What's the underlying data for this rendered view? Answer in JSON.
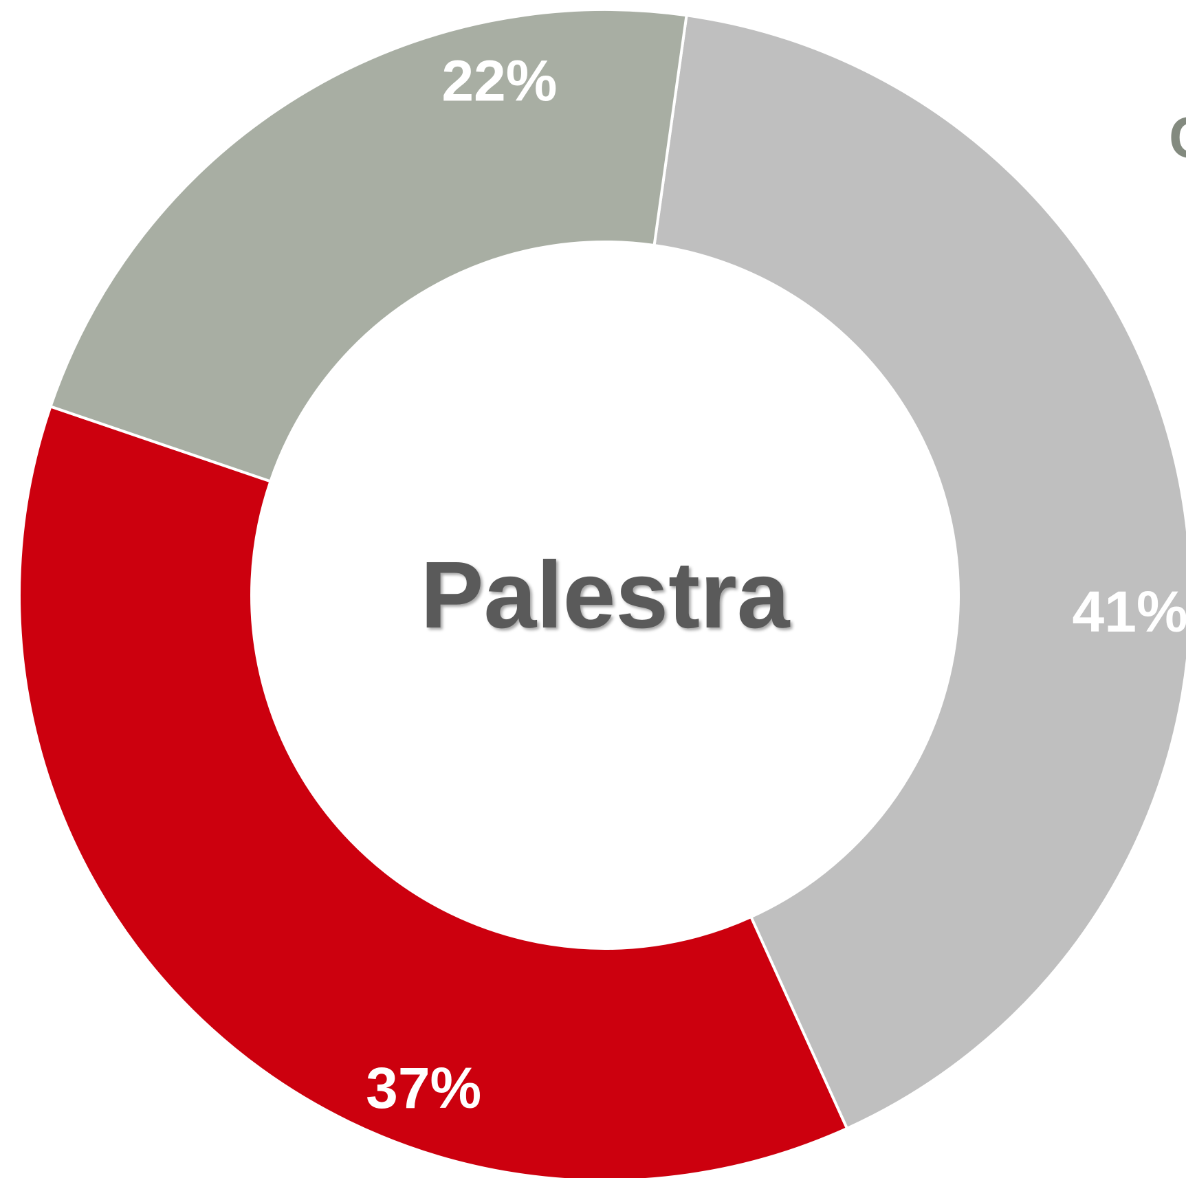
{
  "chart_data": {
    "type": "pie",
    "variant": "donut",
    "center_label": "Palestra",
    "slices": [
      {
        "label": "41%",
        "value": 41,
        "color": "#bfbfbf"
      },
      {
        "label": "37%",
        "value": 37,
        "color": "#cc000e"
      },
      {
        "label": "22%",
        "value": 22,
        "color": "#a8aea3"
      }
    ],
    "edge_text": "C",
    "separator_color": "#ffffff",
    "center_text_color": "#5a5a5a",
    "edge_text_color": "#838a7f"
  }
}
